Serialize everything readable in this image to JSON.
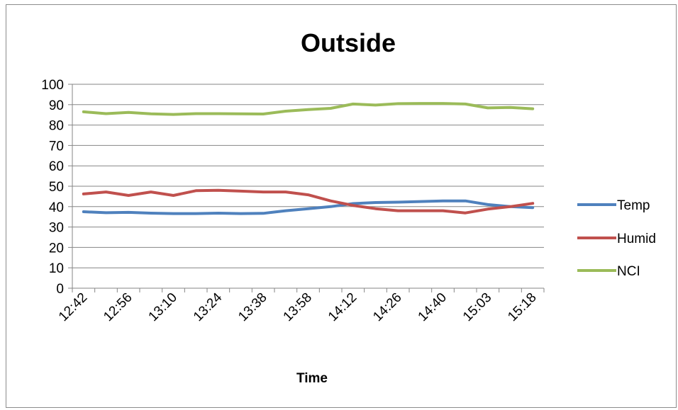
{
  "chart_data": {
    "type": "line",
    "title": "Outside",
    "xlabel": "Time",
    "ylabel": "",
    "ylim": [
      0,
      100
    ],
    "yticks": [
      0,
      10,
      20,
      30,
      40,
      50,
      60,
      70,
      80,
      90,
      100
    ],
    "grid": true,
    "legend_position": "right",
    "x": [
      "12:42",
      "12:49",
      "12:56",
      "13:03",
      "13:10",
      "13:17",
      "13:24",
      "13:31",
      "13:38",
      "13:51",
      "13:58",
      "14:05",
      "14:12",
      "14:19",
      "14:26",
      "14:33",
      "14:40",
      "14:47",
      "15:03",
      "15:10",
      "15:18"
    ],
    "x_tick_labels": [
      "12:42",
      "12:56",
      "13:10",
      "13:24",
      "13:38",
      "13:58",
      "14:12",
      "14:26",
      "14:40",
      "15:03",
      "15:18"
    ],
    "series": [
      {
        "name": "Temp",
        "color": "#4f81bd",
        "values": [
          37.5,
          37,
          37.2,
          36.8,
          36.6,
          36.6,
          36.8,
          36.6,
          36.7,
          38,
          39,
          40,
          41.5,
          42,
          42.2,
          42.5,
          42.8,
          42.8,
          41,
          40,
          39.5
        ]
      },
      {
        "name": "Humid",
        "color": "#c0504d",
        "values": [
          46.2,
          47.2,
          45.5,
          47.2,
          45.5,
          47.8,
          48,
          47.6,
          47.2,
          47.2,
          45.8,
          42.8,
          40.6,
          39,
          38,
          38,
          38,
          36.9,
          38.8,
          40,
          41.6
        ]
      },
      {
        "name": "NCI",
        "color": "#9bbb59",
        "values": [
          86.5,
          85.6,
          86.2,
          85.5,
          85.2,
          85.6,
          85.6,
          85.5,
          85.4,
          86.8,
          87.6,
          88.2,
          90.3,
          89.8,
          90.5,
          90.6,
          90.6,
          90.3,
          88.4,
          88.6,
          88
        ]
      }
    ]
  }
}
